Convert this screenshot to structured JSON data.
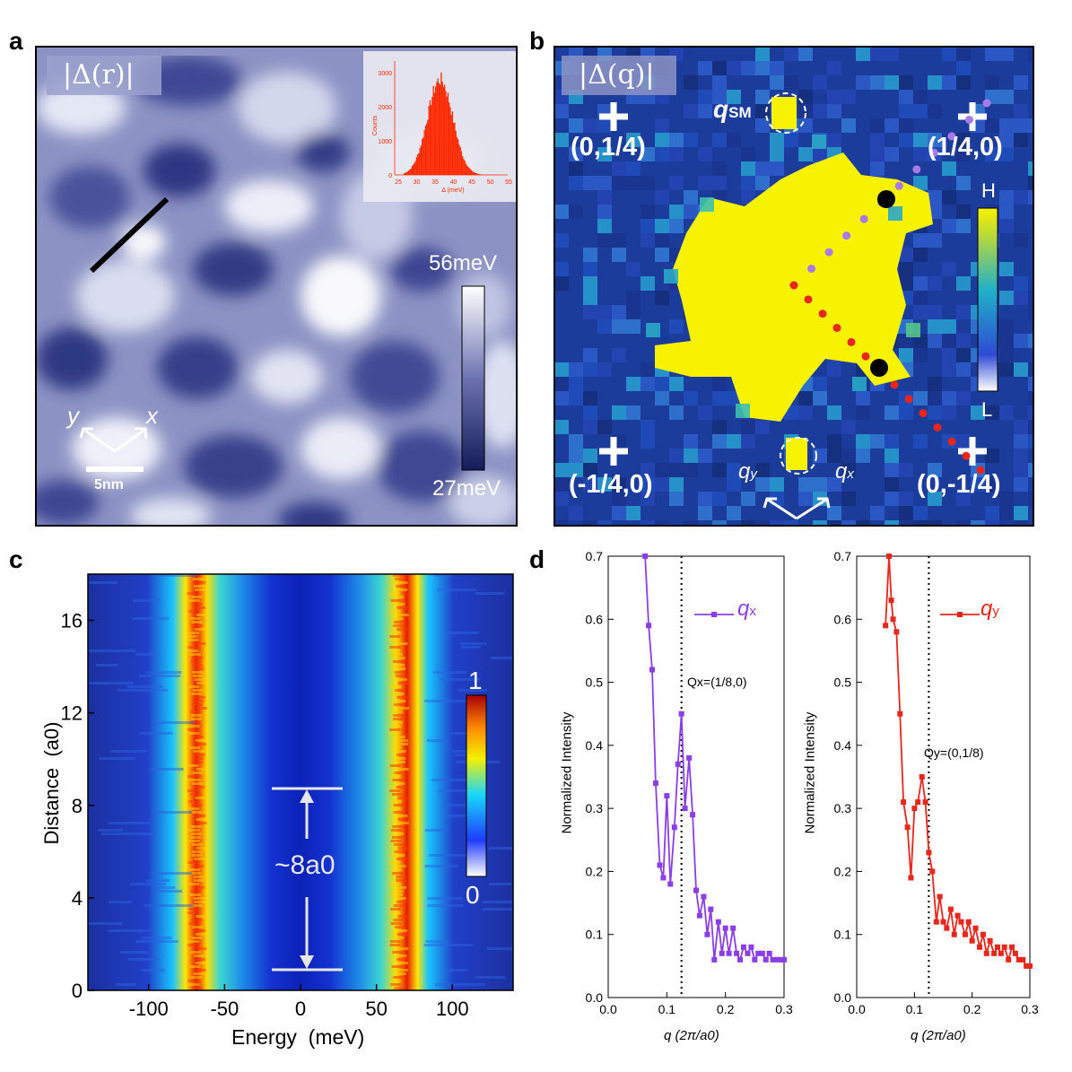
{
  "panel_letters": {
    "a": "a",
    "b": "b",
    "c": "c",
    "d": "d"
  },
  "colors": {
    "gap_dark": "#1f2a6b",
    "gap_light": "#ffffff",
    "fft_bg": "#1c3c9c",
    "fft_bright": "#f7f200",
    "jet_low": "#1f3cff",
    "jet_high": "#c40000",
    "qx": "#8a3fe6",
    "qy": "#e8261b",
    "hist": "#ff2a00"
  },
  "panel_a": {
    "title": "|Δ(r)|",
    "colorbar_max": "56meV",
    "colorbar_min": "27meV",
    "scale_label": "5nm",
    "axis_x": "x",
    "axis_y": "y",
    "inset": {
      "ylabel": "Counts",
      "xlabel": "Δ (meV)",
      "yticks": [
        "0",
        "1000",
        "2000",
        "3000"
      ],
      "xticks": [
        "25",
        "30",
        "35",
        "40",
        "45",
        "50",
        "55"
      ]
    }
  },
  "panel_b": {
    "title": "|Δ(q)|",
    "q_sm_label": "q",
    "q_sm_sub": "SM",
    "corners": [
      "(0,1/4)",
      "(1/4,0)",
      "(-1/4,0)",
      "(0,-1/4)"
    ],
    "colorbar_high": "H",
    "colorbar_low": "L",
    "axis_qx": "q",
    "axis_qx_sub": "x",
    "axis_qy": "q",
    "axis_qy_sub": "y"
  },
  "chart_data": [
    {
      "type": "heatmap",
      "id": "c",
      "xlabel": "Energy  (meV)",
      "ylabel": "Distance  (a0)",
      "xlim": [
        -140,
        140
      ],
      "ylim": [
        0,
        18
      ],
      "xticks": [
        -100,
        -50,
        0,
        50,
        100
      ],
      "yticks": [
        0,
        4,
        8,
        12,
        16
      ],
      "colorbar_max": "1",
      "colorbar_min": "0",
      "annotation": "~8a0",
      "annotation_range": [
        0.9,
        8.9
      ],
      "peak_energies": [
        -68,
        65
      ]
    },
    {
      "type": "line",
      "id": "d-qx",
      "title": "",
      "xlabel": "q (2π/a0)",
      "ylabel": "Normalized Intensity",
      "xlim": [
        0,
        0.3
      ],
      "ylim": [
        0,
        0.7
      ],
      "xticks": [
        "0.0",
        "0.1",
        "0.2",
        "0.3"
      ],
      "yticks": [
        "0.0",
        "0.1",
        "0.2",
        "0.3",
        "0.4",
        "0.5",
        "0.6",
        "0.7"
      ],
      "legend": "q",
      "legend_sub": "x",
      "marker_label": "Qx=(1/8,0)",
      "marker_q": 0.125,
      "series": [
        {
          "name": "qx",
          "x": [
            0.063,
            0.069,
            0.075,
            0.081,
            0.088,
            0.094,
            0.1,
            0.106,
            0.113,
            0.119,
            0.125,
            0.131,
            0.138,
            0.144,
            0.15,
            0.156,
            0.163,
            0.169,
            0.175,
            0.181,
            0.188,
            0.194,
            0.2,
            0.206,
            0.213,
            0.219,
            0.225,
            0.231,
            0.238,
            0.244,
            0.25,
            0.256,
            0.263,
            0.269,
            0.275,
            0.281,
            0.288,
            0.294,
            0.3
          ],
          "values": [
            0.7,
            0.59,
            0.52,
            0.34,
            0.21,
            0.19,
            0.32,
            0.18,
            0.27,
            0.37,
            0.45,
            0.3,
            0.38,
            0.29,
            0.17,
            0.13,
            0.16,
            0.1,
            0.14,
            0.06,
            0.12,
            0.07,
            0.11,
            0.07,
            0.11,
            0.07,
            0.06,
            0.08,
            0.07,
            0.08,
            0.06,
            0.07,
            0.07,
            0.06,
            0.07,
            0.06,
            0.06,
            0.06,
            0.06
          ]
        }
      ]
    },
    {
      "type": "line",
      "id": "d-qy",
      "title": "",
      "xlabel": "q (2π/a0)",
      "ylabel": "Normalized Intensity",
      "xlim": [
        0,
        0.3
      ],
      "ylim": [
        0,
        0.7
      ],
      "xticks": [
        "0.0",
        "0.1",
        "0.2",
        "0.3"
      ],
      "yticks": [
        "0.0",
        "0.1",
        "0.2",
        "0.3",
        "0.4",
        "0.5",
        "0.6",
        "0.7"
      ],
      "legend": "q",
      "legend_sub": "y",
      "marker_label": "Qy=(0,1/8)",
      "marker_q": 0.125,
      "series": [
        {
          "name": "qy",
          "x": [
            0.05,
            0.056,
            0.06,
            0.063,
            0.069,
            0.075,
            0.081,
            0.088,
            0.094,
            0.1,
            0.106,
            0.113,
            0.119,
            0.125,
            0.131,
            0.138,
            0.144,
            0.15,
            0.156,
            0.163,
            0.169,
            0.175,
            0.181,
            0.188,
            0.194,
            0.2,
            0.206,
            0.213,
            0.219,
            0.225,
            0.231,
            0.238,
            0.244,
            0.25,
            0.256,
            0.263,
            0.269,
            0.275,
            0.281,
            0.288,
            0.294,
            0.3
          ],
          "values": [
            0.59,
            0.7,
            0.63,
            0.6,
            0.58,
            0.45,
            0.31,
            0.27,
            0.19,
            0.3,
            0.31,
            0.35,
            0.31,
            0.23,
            0.2,
            0.12,
            0.16,
            0.12,
            0.11,
            0.14,
            0.1,
            0.13,
            0.12,
            0.1,
            0.12,
            0.09,
            0.11,
            0.08,
            0.1,
            0.07,
            0.09,
            0.07,
            0.08,
            0.07,
            0.08,
            0.06,
            0.08,
            0.07,
            0.06,
            0.06,
            0.05,
            0.05
          ]
        }
      ]
    }
  ]
}
